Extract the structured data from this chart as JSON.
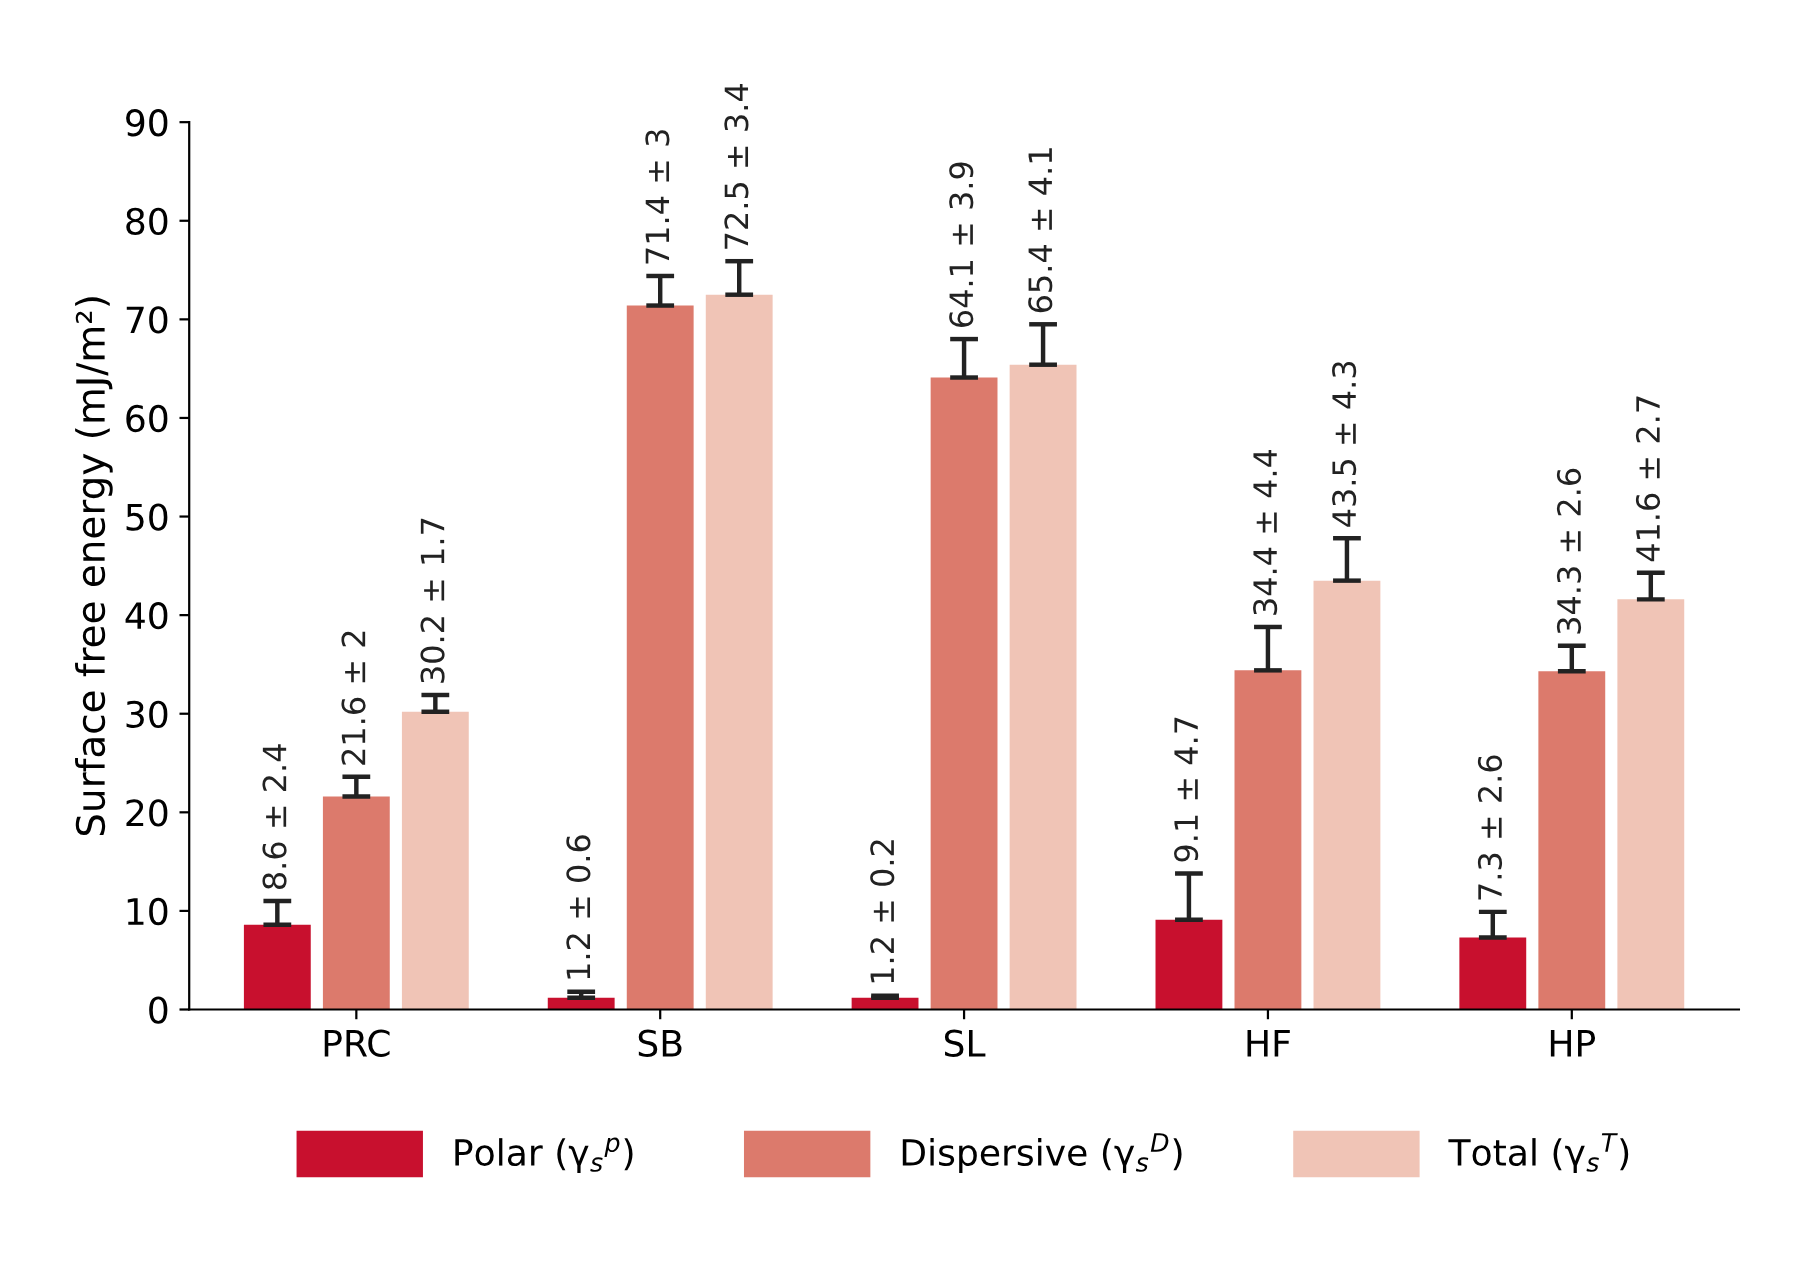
{
  "chart_data": {
    "type": "bar",
    "ylabel": "Surface free energy (mJ/m²)",
    "categories": [
      "PRC",
      "SB",
      "SL",
      "HF",
      "HP"
    ],
    "series": [
      {
        "name": "Polar (γ$_{s}$$^{p}$)",
        "color": "#c8102e",
        "values": [
          8.6,
          1.2,
          1.2,
          9.1,
          7.3
        ],
        "errors": [
          2.4,
          0.6,
          0.2,
          4.7,
          2.6
        ],
        "value_labels": [
          "8.6 ± 2.4",
          "1.2 ± 0.6",
          "1.2 ± 0.2",
          "9.1 ± 4.7",
          "7.3 ± 2.6"
        ]
      },
      {
        "name": "Dispersive (γ$_{s}$$^{D}$)",
        "color": "#dc7a6c",
        "values": [
          21.6,
          71.4,
          64.1,
          34.4,
          34.3
        ],
        "errors": [
          2,
          3,
          3.9,
          4.4,
          2.6
        ],
        "value_labels": [
          "21.6 ± 2",
          "71.4 ± 3",
          "64.1 ± 3.9",
          "34.4 ± 4.4",
          "34.3 ± 2.6"
        ]
      },
      {
        "name": "Total (γ$_{s}$$^{T}$)",
        "color": "#f0c4b6",
        "values": [
          30.2,
          72.5,
          65.4,
          43.5,
          41.6
        ],
        "errors": [
          1.7,
          3.4,
          4.1,
          4.3,
          2.7
        ],
        "value_labels": [
          "30.2 ± 1.7",
          "72.5 ± 3.4",
          "65.4 ± 4.1",
          "43.5 ± 4.3",
          "41.6 ± 2.7"
        ]
      }
    ],
    "ylim": [
      0,
      90
    ],
    "yticks": [
      0,
      10,
      20,
      30,
      40,
      50,
      60,
      70,
      80,
      90
    ],
    "grid": false,
    "legend": "bottom"
  }
}
